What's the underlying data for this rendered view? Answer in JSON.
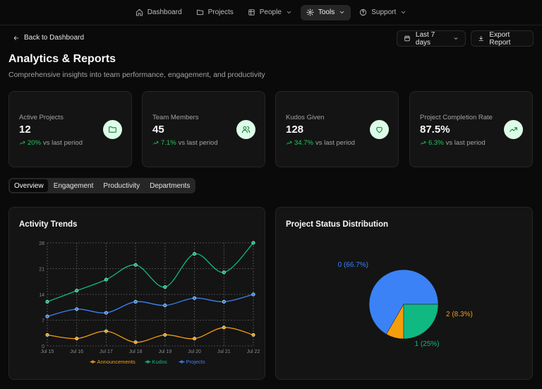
{
  "nav": {
    "items": [
      {
        "label": "Dashboard",
        "icon": "home-icon"
      },
      {
        "label": "Projects",
        "icon": "folder-icon"
      },
      {
        "label": "People",
        "icon": "people-icon"
      },
      {
        "label": "Tools",
        "icon": "gear-icon"
      },
      {
        "label": "Support",
        "icon": "help-icon"
      }
    ]
  },
  "header": {
    "back_label": "Back to Dashboard",
    "range_label": "Last 7 days",
    "export_label": "Export Report",
    "title": "Analytics & Reports",
    "subtitle": "Comprehensive insights into team performance, engagement, and productivity"
  },
  "stats": [
    {
      "label": "Active Projects",
      "value": "12",
      "change": "20%",
      "suffix": "vs last period",
      "icon": "folder-icon"
    },
    {
      "label": "Team Members",
      "value": "45",
      "change": "7.1%",
      "suffix": "vs last period",
      "icon": "users-icon"
    },
    {
      "label": "Kudos Given",
      "value": "128",
      "change": "34.7%",
      "suffix": "vs last period",
      "icon": "heart-icon"
    },
    {
      "label": "Project Completion Rate",
      "value": "87.5%",
      "change": "6.3%",
      "suffix": "vs last period",
      "icon": "trend-up-icon"
    }
  ],
  "tabs": [
    "Overview",
    "Engagement",
    "Productivity",
    "Departments"
  ],
  "panels": {
    "activity_title": "Activity Trends",
    "status_title": "Project Status Distribution"
  },
  "colors": {
    "accent_green": "#22c55e",
    "announcements": "#f59e0b",
    "kudos": "#10b981",
    "projects": "#3b82f6"
  },
  "chart_data": [
    {
      "type": "line",
      "title": "Activity Trends",
      "x": [
        "Jul 15",
        "Jul 16",
        "Jul 17",
        "Jul 18",
        "Jul 19",
        "Jul 20",
        "Jul 21",
        "Jul 22"
      ],
      "ylim": [
        0,
        28
      ],
      "yticks": [
        0,
        7,
        14,
        21,
        28
      ],
      "grid": true,
      "legend": "bottom",
      "series": [
        {
          "name": "Announcements",
          "color": "#f59e0b",
          "values": [
            3,
            2,
            4,
            1,
            3,
            2,
            5,
            3
          ]
        },
        {
          "name": "Kudos",
          "color": "#10b981",
          "values": [
            12,
            15,
            18,
            22,
            16,
            25,
            20,
            28
          ]
        },
        {
          "name": "Projects",
          "color": "#3b82f6",
          "values": [
            8,
            10,
            9,
            12,
            11,
            13,
            12,
            14
          ]
        }
      ]
    },
    {
      "type": "pie",
      "title": "Project Status Distribution",
      "slices": [
        {
          "label": "0 (66.7%)",
          "value": 8,
          "color": "#3b82f6"
        },
        {
          "label": "2 (8.3%)",
          "value": 1,
          "color": "#f59e0b"
        },
        {
          "label": "1 (25%)",
          "value": 3,
          "color": "#10b981"
        }
      ]
    }
  ]
}
